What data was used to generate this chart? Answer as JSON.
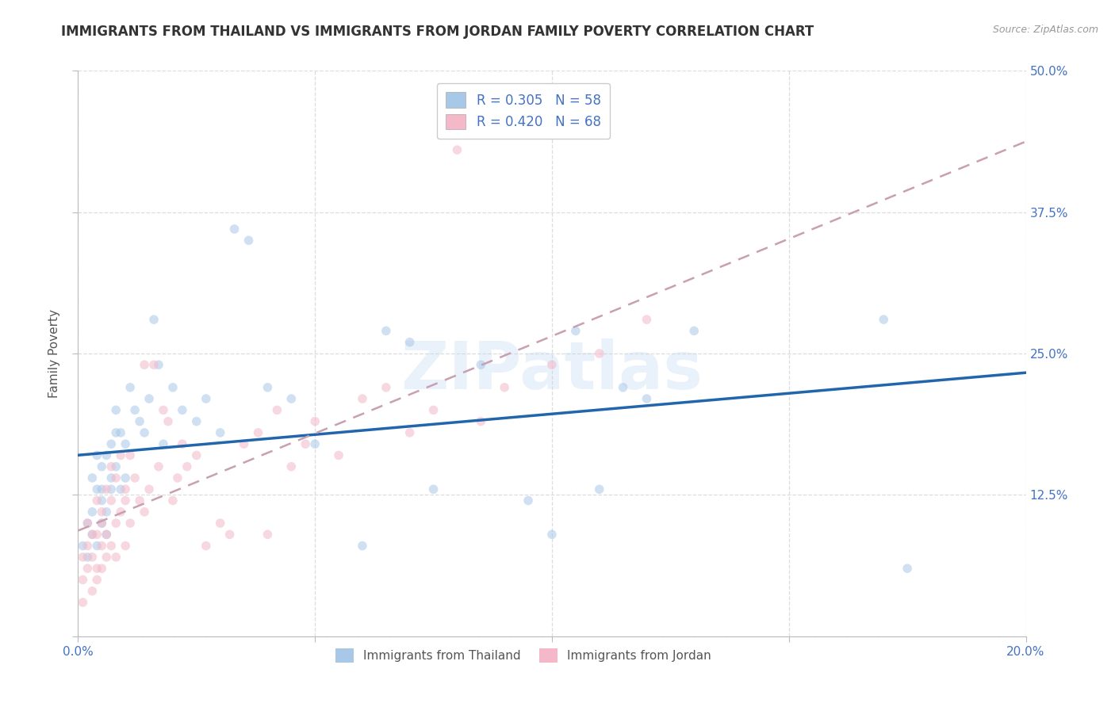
{
  "title": "IMMIGRANTS FROM THAILAND VS IMMIGRANTS FROM JORDAN FAMILY POVERTY CORRELATION CHART",
  "source": "Source: ZipAtlas.com",
  "ylabel": "Family Poverty",
  "watermark": "ZIPatlas",
  "legend_label1": "Immigrants from Thailand",
  "legend_label2": "Immigrants from Jordan",
  "color_thailand": "#a8c8e8",
  "color_jordan": "#f4b8c8",
  "trendline_thailand_color": "#2166ac",
  "trendline_jordan_color": "#c8a0b0",
  "xlim": [
    0.0,
    0.2
  ],
  "ylim": [
    0.0,
    0.5
  ],
  "xticks": [
    0.0,
    0.05,
    0.1,
    0.15,
    0.2
  ],
  "xtick_labels": [
    "0.0%",
    "",
    "",
    "",
    "20.0%"
  ],
  "yticks": [
    0.0,
    0.125,
    0.25,
    0.375,
    0.5
  ],
  "ytick_labels": [
    "",
    "12.5%",
    "25.0%",
    "37.5%",
    "50.0%"
  ],
  "R_thailand": 0.305,
  "N_thailand": 58,
  "R_jordan": 0.42,
  "N_jordan": 68,
  "thailand_x": [
    0.001,
    0.002,
    0.002,
    0.003,
    0.003,
    0.003,
    0.004,
    0.004,
    0.004,
    0.005,
    0.005,
    0.005,
    0.005,
    0.006,
    0.006,
    0.006,
    0.007,
    0.007,
    0.007,
    0.008,
    0.008,
    0.008,
    0.009,
    0.009,
    0.01,
    0.01,
    0.011,
    0.012,
    0.013,
    0.014,
    0.015,
    0.016,
    0.017,
    0.018,
    0.02,
    0.022,
    0.025,
    0.027,
    0.03,
    0.033,
    0.036,
    0.04,
    0.045,
    0.05,
    0.06,
    0.065,
    0.07,
    0.075,
    0.085,
    0.095,
    0.1,
    0.105,
    0.11,
    0.115,
    0.12,
    0.13,
    0.17,
    0.175
  ],
  "thailand_y": [
    0.08,
    0.1,
    0.07,
    0.09,
    0.14,
    0.11,
    0.13,
    0.08,
    0.16,
    0.1,
    0.12,
    0.15,
    0.13,
    0.11,
    0.16,
    0.09,
    0.14,
    0.17,
    0.13,
    0.18,
    0.2,
    0.15,
    0.13,
    0.18,
    0.14,
    0.17,
    0.22,
    0.2,
    0.19,
    0.18,
    0.21,
    0.28,
    0.24,
    0.17,
    0.22,
    0.2,
    0.19,
    0.21,
    0.18,
    0.36,
    0.35,
    0.22,
    0.21,
    0.17,
    0.08,
    0.27,
    0.26,
    0.13,
    0.24,
    0.12,
    0.09,
    0.27,
    0.13,
    0.22,
    0.21,
    0.27,
    0.28,
    0.06
  ],
  "jordan_x": [
    0.001,
    0.001,
    0.001,
    0.002,
    0.002,
    0.002,
    0.003,
    0.003,
    0.003,
    0.004,
    0.004,
    0.004,
    0.004,
    0.005,
    0.005,
    0.005,
    0.005,
    0.006,
    0.006,
    0.006,
    0.007,
    0.007,
    0.007,
    0.008,
    0.008,
    0.008,
    0.009,
    0.009,
    0.01,
    0.01,
    0.01,
    0.011,
    0.011,
    0.012,
    0.013,
    0.014,
    0.014,
    0.015,
    0.016,
    0.017,
    0.018,
    0.019,
    0.02,
    0.021,
    0.022,
    0.023,
    0.025,
    0.027,
    0.03,
    0.032,
    0.035,
    0.038,
    0.04,
    0.042,
    0.045,
    0.048,
    0.05,
    0.055,
    0.06,
    0.065,
    0.07,
    0.075,
    0.08,
    0.085,
    0.09,
    0.1,
    0.11,
    0.12
  ],
  "jordan_y": [
    0.05,
    0.07,
    0.03,
    0.06,
    0.08,
    0.1,
    0.07,
    0.09,
    0.04,
    0.06,
    0.09,
    0.05,
    0.12,
    0.08,
    0.11,
    0.06,
    0.1,
    0.13,
    0.07,
    0.09,
    0.12,
    0.08,
    0.15,
    0.1,
    0.14,
    0.07,
    0.11,
    0.16,
    0.12,
    0.08,
    0.13,
    0.1,
    0.16,
    0.14,
    0.12,
    0.11,
    0.24,
    0.13,
    0.24,
    0.15,
    0.2,
    0.19,
    0.12,
    0.14,
    0.17,
    0.15,
    0.16,
    0.08,
    0.1,
    0.09,
    0.17,
    0.18,
    0.09,
    0.2,
    0.15,
    0.17,
    0.19,
    0.16,
    0.21,
    0.22,
    0.18,
    0.2,
    0.43,
    0.19,
    0.22,
    0.24,
    0.25,
    0.28
  ],
  "background_color": "#ffffff",
  "grid_color": "#dddddd",
  "title_color": "#333333",
  "title_fontsize": 12,
  "ylabel_fontsize": 11,
  "tick_fontsize": 11,
  "marker_size": 70,
  "marker_alpha": 0.55,
  "trendline_lw_thailand": 2.5,
  "trendline_lw_jordan": 1.8,
  "right_tick_color": "#4472c4"
}
